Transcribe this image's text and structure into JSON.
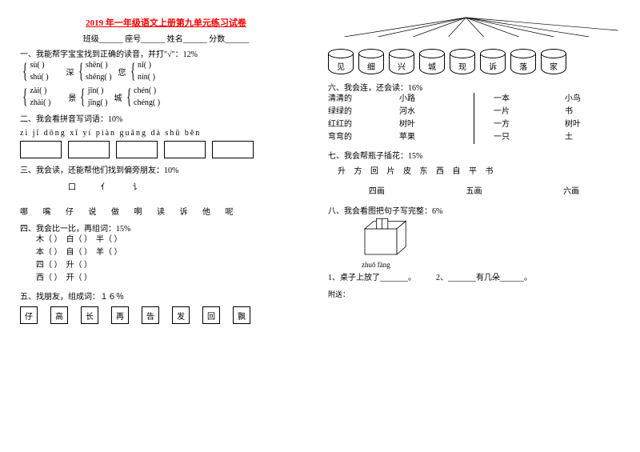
{
  "title": "2019 年一年级语文上册第九单元练习试卷",
  "header": {
    "class_label": "班级",
    "seat_label": "座号",
    "name_label": "姓名",
    "score_label": "分数"
  },
  "q1": {
    "prompt": "一、我能帮字宝宝找到正确的读音，并打\"√\"：12%",
    "groups": [
      {
        "char": "诉",
        "opts": [
          "sù(          )",
          "shú(          )"
        ]
      },
      {
        "char": "深",
        "opts": [
          "shēn(          )",
          "shēng(          )"
        ]
      },
      {
        "char": "您",
        "opts": [
          "nǐ(          )",
          "nín(          )"
        ]
      }
    ],
    "groups2": [
      {
        "char": "再",
        "opts": [
          "zài(          )",
          "zhài(          )"
        ]
      },
      {
        "char": "景",
        "opts": [
          "jǐn(          )",
          "jǐng(          )"
        ]
      },
      {
        "char": "城",
        "opts": [
          "chén(          )",
          "chéng(          )"
        ]
      }
    ]
  },
  "q2": {
    "prompt": "二、我会看拼音写词语：10%",
    "pinyin": "zì    jǐ    dōng  xī    yí   piàn   guāng  dà    shū   běn"
  },
  "q3": {
    "prompt": "三、我会读，还能帮他们找到偏旁朋友：10%",
    "radicals": "口   亻   讠",
    "chars": "哪   嘴   仔   说   做   啊   读   诉   他   呢"
  },
  "q4": {
    "prompt": "四、我会比一比，再组词：15%",
    "rows": [
      [
        "木（          ）",
        "白（          ）",
        "半（          ）"
      ],
      [
        "本（          ）",
        "自（          ）",
        "羊（          ）"
      ],
      [
        "四（          ）",
        "升（          ）",
        ""
      ],
      [
        "西（          ）",
        "开（          ）",
        ""
      ]
    ]
  },
  "q5": {
    "prompt": "五、找朋友，组成词：１６％",
    "boxes": [
      "仔",
      "高",
      "长",
      "再",
      "告",
      "发",
      "回",
      "飘"
    ],
    "cylinders": [
      "见",
      "细",
      "兴",
      "城",
      "现",
      "诉",
      "落",
      "家"
    ]
  },
  "q6": {
    "prompt": "六、我会连，还会读：16%",
    "col1": [
      "清清的",
      "绿绿的",
      "红红的",
      "弯弯的"
    ],
    "col2": [
      "小路",
      "河水",
      "树叶",
      "苹果"
    ],
    "col3": [
      "一本",
      "一片",
      "一方",
      "一只"
    ],
    "col4": [
      "小鸟",
      "书",
      "树叶",
      "土"
    ]
  },
  "q7": {
    "prompt": "七、我会帮瓶子插花：15%",
    "chars": "升  方  回  片  皮  东  西  自  平  书",
    "strokes": [
      "四画",
      "五画",
      "六画"
    ]
  },
  "q8": {
    "prompt": "八、我会看图把句子写完整：6%",
    "pinyin": "zhuō  fàng",
    "s1": "1、桌子上放了_______。",
    "s2": "2、_______有几朵______。"
  },
  "attach": "附送："
}
